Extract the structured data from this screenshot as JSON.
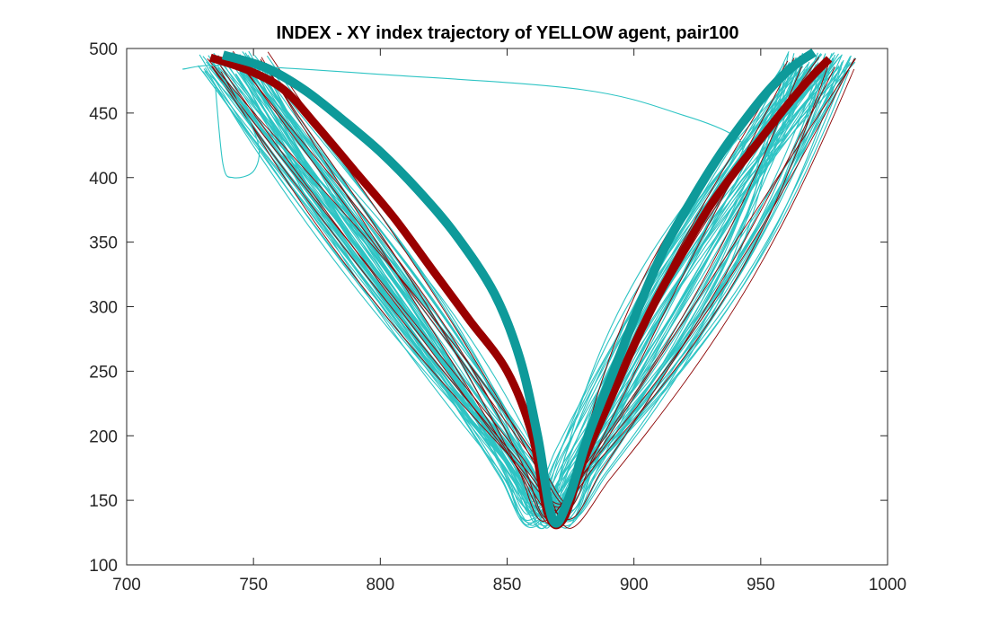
{
  "chart_data": {
    "type": "line",
    "title": "INDEX - XY index trajectory of YELLOW agent, pair100",
    "xlabel": "",
    "ylabel": "",
    "xlim": [
      700,
      1000
    ],
    "ylim": [
      100,
      500
    ],
    "x_ticks": [
      700,
      750,
      800,
      850,
      900,
      950,
      1000
    ],
    "y_ticks": [
      100,
      150,
      200,
      250,
      300,
      350,
      400,
      450,
      500
    ],
    "grid": false,
    "legend": "none",
    "colors": {
      "trial_trajectories": "#2ec4c4",
      "red_trial_trajectories": "#8b0000",
      "mean_red": "#990000",
      "mean_teal": "#0e9a9a",
      "axes": "#262626"
    },
    "series": [
      {
        "style": "mean-red",
        "x": [
          733,
          748,
          762,
          775,
          790,
          805,
          820,
          835,
          850,
          860,
          866,
          872,
          880,
          890,
          900,
          910,
          920,
          930,
          940,
          950,
          960,
          970,
          977
        ],
        "y": [
          493,
          483,
          468,
          440,
          405,
          370,
          330,
          290,
          250,
          200,
          140,
          135,
          180,
          225,
          270,
          310,
          345,
          378,
          405,
          430,
          455,
          478,
          492
        ]
      },
      {
        "style": "mean-teal",
        "x": [
          738,
          755,
          770,
          785,
          800,
          815,
          830,
          845,
          855,
          862,
          868,
          874,
          882,
          892,
          902,
          912,
          922,
          932,
          942,
          952,
          962,
          971
        ],
        "y": [
          495,
          485,
          468,
          445,
          420,
          390,
          355,
          310,
          260,
          200,
          135,
          150,
          200,
          250,
          300,
          345,
          380,
          412,
          440,
          465,
          485,
          497
        ]
      },
      {
        "style": "trial",
        "x": [
          722,
          740,
          800,
          880,
          920,
          940,
          943
        ],
        "y": [
          484,
          487,
          480,
          468,
          448,
          432,
          420
        ]
      },
      {
        "style": "trial",
        "x": [
          735,
          745,
          752,
          750,
          742,
          738,
          735
        ],
        "y": [
          480,
          455,
          425,
          405,
          400,
          410,
          470
        ]
      }
    ]
  }
}
